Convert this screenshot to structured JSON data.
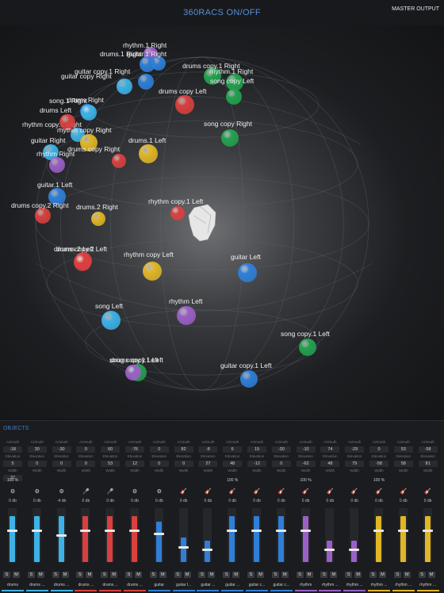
{
  "header": {
    "title": "360RACS ON/OFF",
    "master_label": "MASTER OUTPUT"
  },
  "section_label": "OBJECTS",
  "labels": {
    "azimuth": "Azimuth",
    "elevation": "Elevation",
    "width": "Width",
    "solo": "S",
    "mute": "M"
  },
  "colors": {
    "blue": "#2f7fd8",
    "cyan": "#3db2e6",
    "red": "#d9403f",
    "green": "#23a24f",
    "yellow": "#e0b626",
    "purple": "#9b5fc6",
    "accent": "#5b8fd6"
  },
  "scene_objects": [
    {
      "label": "rhythm.1 Right",
      "color": "purple"
    },
    {
      "label": "guitar.1 Right",
      "color": "blue"
    },
    {
      "label": "drums copy.1 Right",
      "color": "green"
    },
    {
      "label": "rhythm.1 Right",
      "color": "green"
    },
    {
      "label": "drums.1 Right",
      "color": "blue"
    },
    {
      "label": "guitar copy.1 Right",
      "color": "blue"
    },
    {
      "label": "guitar copy Right",
      "color": "cyan"
    },
    {
      "label": "drums copy Left",
      "color": "red"
    },
    {
      "label": "song copy Left",
      "color": "green"
    },
    {
      "label": "drums Right",
      "color": "blue"
    },
    {
      "label": "song.1 Right",
      "color": "cyan"
    },
    {
      "label": "rhythm copy.1 Right",
      "color": "cyan"
    },
    {
      "label": "drums Left",
      "color": "red"
    },
    {
      "label": "rhythm copy Right",
      "color": "yellow"
    },
    {
      "label": "song copy Right",
      "color": "green"
    },
    {
      "label": "guitar Right",
      "color": "cyan"
    },
    {
      "label": "drums.1 Left",
      "color": "yellow"
    },
    {
      "label": "rhythm Right",
      "color": "purple"
    },
    {
      "label": "drums copy Right",
      "color": "red"
    },
    {
      "label": "guitar.1 Left",
      "color": "blue"
    },
    {
      "label": "drums copy.2 Right",
      "color": "red"
    },
    {
      "label": "drums.2 Right",
      "color": "yellow"
    },
    {
      "label": "rhythm copy.1 Left",
      "color": "red"
    },
    {
      "label": "drums copy.2 Left",
      "color": "red"
    },
    {
      "label": "drums.2 Left",
      "color": "red"
    },
    {
      "label": "rhythm copy Left",
      "color": "yellow"
    },
    {
      "label": "guitar Left",
      "color": "blue"
    },
    {
      "label": "song Left",
      "color": "cyan"
    },
    {
      "label": "rhythm Left",
      "color": "purple"
    },
    {
      "label": "song copy.1 Left",
      "color": "green"
    },
    {
      "label": "drums copy.1 Left",
      "color": "green"
    },
    {
      "label": "song copy.1 Left",
      "color": "purple"
    },
    {
      "label": "guitar copy.1 Left",
      "color": "blue"
    }
  ],
  "strips": [
    {
      "name": "drums",
      "az": "-18",
      "el": "5",
      "w": "37",
      "width": "100 %",
      "db": "0 db",
      "icon": "⚙",
      "color": "cyan",
      "level": 0.85,
      "fader": 0.6
    },
    {
      "name": "drums ...",
      "az": "30",
      "el": "0",
      "w": "",
      "width": "",
      "db": "0 db",
      "icon": "⚙",
      "color": "cyan",
      "level": 0.85,
      "fader": 0.6
    },
    {
      "name": "drums ...",
      "az": "-30",
      "el": "0",
      "w": "",
      "width": "",
      "db": "-4 db",
      "icon": "⚙",
      "color": "cyan",
      "level": 0.85,
      "fader": 0.52
    },
    {
      "name": "drums ...",
      "az": "0",
      "el": "0",
      "w": "",
      "width": "",
      "db": "0 db",
      "icon": "🎤",
      "color": "red",
      "level": 0.85,
      "fader": 0.6
    },
    {
      "name": "drums ...",
      "az": "60",
      "el": "53",
      "w": "",
      "width": "",
      "db": "0 db",
      "icon": "🎤",
      "color": "red",
      "level": 0.85,
      "fader": 0.6
    },
    {
      "name": "drums ...",
      "az": "-76",
      "el": "12",
      "w": "",
      "width": "",
      "db": "0 db",
      "icon": "⚙",
      "color": "red",
      "level": 0.85,
      "fader": 0.6
    },
    {
      "name": "guitar",
      "az": "0",
      "el": "0",
      "w": "",
      "width": "",
      "db": "0 db",
      "icon": "⚙",
      "color": "blue",
      "level": 0.75,
      "fader": 0.55
    },
    {
      "name": "guitar l...",
      "az": "82",
      "el": "0",
      "w": "",
      "width": "",
      "db": "0 db",
      "icon": "🎸",
      "color": "blue",
      "level": 0.45,
      "fader": 0.3
    },
    {
      "name": "guitar ...",
      "az": "-8",
      "el": "27",
      "w": "",
      "width": "",
      "db": "0 db",
      "icon": "🎸",
      "color": "blue",
      "level": 0.4,
      "fader": 0.25
    },
    {
      "name": "guitar ...",
      "az": "6",
      "el": "48",
      "w": "",
      "width": "100 %",
      "db": "0 db",
      "icon": "🎸",
      "color": "blue",
      "level": 0.85,
      "fader": 0.6
    },
    {
      "name": "guitar c...",
      "az": "19",
      "el": "-12",
      "w": "",
      "width": "",
      "db": "0 db",
      "icon": "🎸",
      "color": "blue",
      "level": 0.85,
      "fader": 0.6
    },
    {
      "name": "guitar c...",
      "az": "-30",
      "el": "0",
      "w": "",
      "width": "",
      "db": "0 db",
      "icon": "🎸",
      "color": "blue",
      "level": 0.85,
      "fader": 0.6
    },
    {
      "name": "rhythm",
      "az": "-10",
      "el": "-62",
      "w": "",
      "width": "100 %",
      "db": "0 db",
      "icon": "🎸",
      "color": "purple",
      "level": 0.85,
      "fader": 0.6
    },
    {
      "name": "rhythm ...",
      "az": "74",
      "el": "48",
      "w": "",
      "width": "",
      "db": "0 db",
      "icon": "🎸",
      "color": "purple",
      "level": 0.4,
      "fader": 0.25
    },
    {
      "name": "rhythm ...",
      "az": "-29",
      "el": "79",
      "w": "",
      "width": "",
      "db": "0 db",
      "icon": "🎸",
      "color": "purple",
      "level": 0.4,
      "fader": 0.25
    },
    {
      "name": "rhythm ...",
      "az": "0",
      "el": "-58",
      "w": "",
      "width": "100 %",
      "db": "0 db",
      "icon": "🎸",
      "color": "yellow",
      "level": 0.85,
      "fader": 0.6
    },
    {
      "name": "rhythm ...",
      "az": "53",
      "el": "58",
      "w": "",
      "width": "",
      "db": "0 db",
      "icon": "🎸",
      "color": "yellow",
      "level": 0.85,
      "fader": 0.6
    },
    {
      "name": "rhythm ...",
      "az": "-58",
      "el": "81",
      "w": "",
      "width": "",
      "db": "0 db",
      "icon": "🎸",
      "color": "yellow",
      "level": 0.85,
      "fader": 0.6
    }
  ]
}
